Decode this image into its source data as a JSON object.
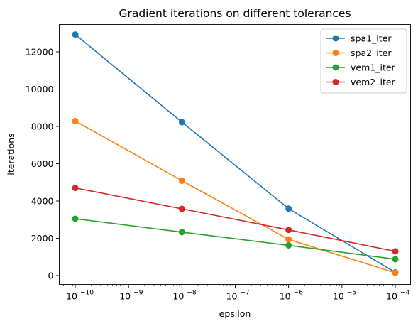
{
  "chart_data": {
    "type": "line",
    "title": "Gradient iterations on different tolerances",
    "xlabel": "epsilon",
    "ylabel": "iterations",
    "x_scale": "log",
    "x": [
      1e-10,
      1e-08,
      1e-06,
      0.0001
    ],
    "x_ticks": [
      {
        "value": 1e-10,
        "base": "10",
        "exp": "−10"
      },
      {
        "value": 1e-09,
        "base": "10",
        "exp": "−9"
      },
      {
        "value": 1e-08,
        "base": "10",
        "exp": "−8"
      },
      {
        "value": 1e-07,
        "base": "10",
        "exp": "−7"
      },
      {
        "value": 1e-06,
        "base": "10",
        "exp": "−6"
      },
      {
        "value": 1e-05,
        "base": "10",
        "exp": "−5"
      },
      {
        "value": 0.0001,
        "base": "10",
        "exp": "−4"
      }
    ],
    "y_ticks": [
      {
        "value": 0,
        "label": "0"
      },
      {
        "value": 2000,
        "label": "2000"
      },
      {
        "value": 4000,
        "label": "4000"
      },
      {
        "value": 6000,
        "label": "6000"
      },
      {
        "value": 8000,
        "label": "8000"
      },
      {
        "value": 10000,
        "label": "10000"
      },
      {
        "value": 12000,
        "label": "12000"
      }
    ],
    "grid": false,
    "legend": "top-right",
    "series": [
      {
        "name": "spa1_iter",
        "color": "#1f77b4",
        "values": [
          12930,
          8230,
          3590,
          170
        ]
      },
      {
        "name": "spa2_iter",
        "color": "#ff7f0e",
        "values": [
          8290,
          5090,
          1940,
          150
        ]
      },
      {
        "name": "vem1_iter",
        "color": "#2ca02c",
        "values": [
          3050,
          2330,
          1620,
          880
        ]
      },
      {
        "name": "vem2_iter",
        "color": "#d62728",
        "values": [
          4700,
          3580,
          2450,
          1300
        ]
      }
    ]
  }
}
